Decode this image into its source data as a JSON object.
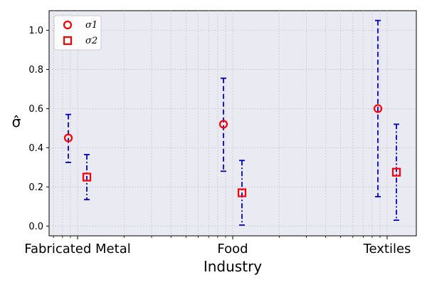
{
  "chart_data": {
    "type": "scatter",
    "xlabel": "Industry",
    "ylabel": "σ̂",
    "categories": [
      "Fabricated Metal",
      "Food",
      "Textiles"
    ],
    "ylim": [
      -0.05,
      1.1
    ],
    "y_ticks": [
      "0.0",
      "0.2",
      "0.4",
      "0.6",
      "0.8",
      "1.0"
    ],
    "grid": true,
    "legend_position": "top-left",
    "series": [
      {
        "name": "σ1",
        "marker": "circle",
        "color": "#ff0000",
        "errorbar_color": "#0000cc",
        "errorbar_style": "dashed",
        "values": [
          0.45,
          0.52,
          0.6
        ],
        "lower": [
          0.325,
          0.28,
          0.15
        ],
        "upper": [
          0.57,
          0.755,
          1.05
        ]
      },
      {
        "name": "σ2",
        "marker": "square",
        "color": "#ff0000",
        "errorbar_color": "#0000cc",
        "errorbar_style": "dashdot",
        "values": [
          0.25,
          0.17,
          0.275
        ],
        "lower": [
          0.135,
          0.005,
          0.03
        ],
        "upper": [
          0.365,
          0.335,
          0.52
        ]
      }
    ]
  }
}
